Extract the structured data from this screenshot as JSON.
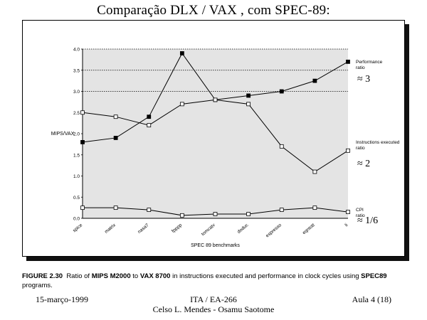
{
  "slide": {
    "title": "Comparação DLX / VAX , com SPEC-89:"
  },
  "chart_data": {
    "type": "line",
    "ylabel": "MIPS/VAX",
    "xlabel": "SPEC 89 benchmarks",
    "ylim": [
      0,
      4
    ],
    "yticks": [
      "0.0",
      "0.5",
      "1.0",
      "1.5",
      "2.0",
      "2.5",
      "3.0",
      "3.5",
      "4.0"
    ],
    "categories": [
      "spice",
      "matrix",
      "nasa7",
      "fpppp",
      "tomcatv",
      "doduc",
      "espresso",
      "eqntott",
      "li"
    ],
    "series": [
      {
        "name": "Performance ratio",
        "marker": "filled-square",
        "values": [
          1.8,
          1.9,
          2.4,
          3.9,
          2.8,
          2.9,
          3.0,
          3.25,
          3.7
        ]
      },
      {
        "name": "Instructions executed ratio",
        "marker": "open-square",
        "values": [
          2.5,
          2.4,
          2.2,
          2.7,
          2.8,
          2.7,
          1.7,
          1.1,
          1.6
        ]
      },
      {
        "name": "CPI ratio",
        "marker": "open-square",
        "values": [
          0.25,
          0.25,
          0.2,
          0.07,
          0.1,
          0.1,
          0.2,
          0.25,
          0.15
        ]
      }
    ],
    "annotations": [
      "≈ 3",
      "≈ 2",
      "≈ 1/6"
    ],
    "plot_background": "#e4e4e4",
    "grid": "dotted horizontal lines above 3.0",
    "legend": "right-side labels"
  },
  "caption": {
    "figure_label": "FIGURE 2.30",
    "text_1": "Ratio of ",
    "bold_1": "MIPS M2000",
    "text_2": " to ",
    "bold_2": "VAX 8700",
    "text_3": " in instructions executed and performance in clock cycles using ",
    "bold_3": "SPEC89",
    "text_4": " programs."
  },
  "footer": {
    "date": "15-março-1999",
    "course": "ITA / EA-266",
    "authors": "Celso L. Mendes - Osamu Saotome",
    "lesson": "Aula 4 (18)"
  }
}
